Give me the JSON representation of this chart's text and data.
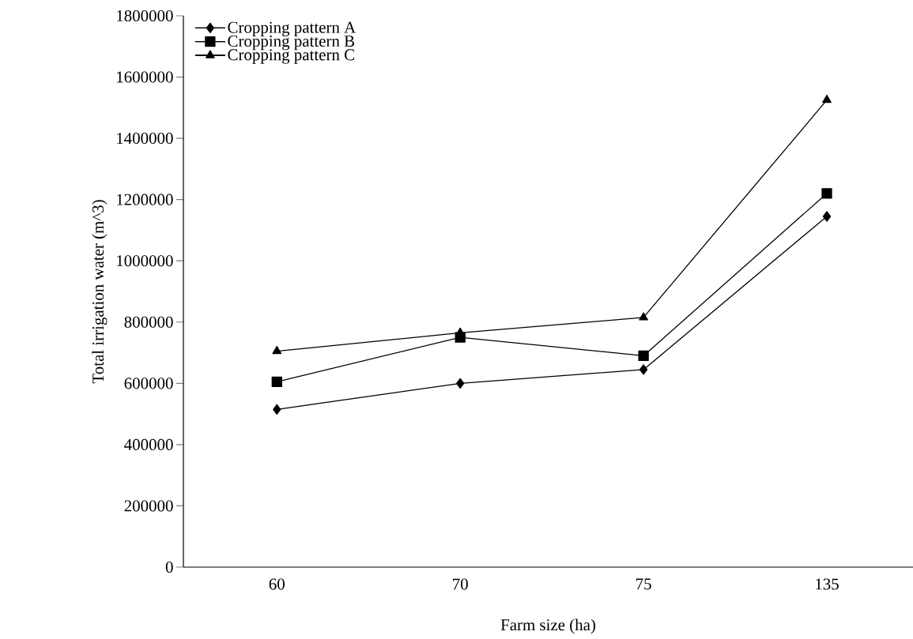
{
  "chart_data": {
    "type": "line",
    "xlabel": "Farm size (ha)",
    "ylabel": "Total irrigation water (m^3)",
    "categories": [
      "60",
      "70",
      "75",
      "135"
    ],
    "series": [
      {
        "name": "Cropping pattern A",
        "color": "#000000",
        "marker": "diamond",
        "values": [
          515000,
          600000,
          645000,
          1145000
        ]
      },
      {
        "name": "Cropping pattern B",
        "color": "#000000",
        "marker": "square",
        "values": [
          605000,
          750000,
          690000,
          1220000
        ]
      },
      {
        "name": "Cropping pattern C",
        "color": "#000000",
        "marker": "triangle",
        "values": [
          705000,
          765000,
          815000,
          1525000
        ]
      }
    ],
    "ylim": [
      0,
      1800000
    ],
    "yticks": [
      0,
      200000,
      400000,
      600000,
      800000,
      1000000,
      1200000,
      1400000,
      1600000,
      1800000
    ],
    "legend": "top left",
    "line_style": "solid"
  }
}
